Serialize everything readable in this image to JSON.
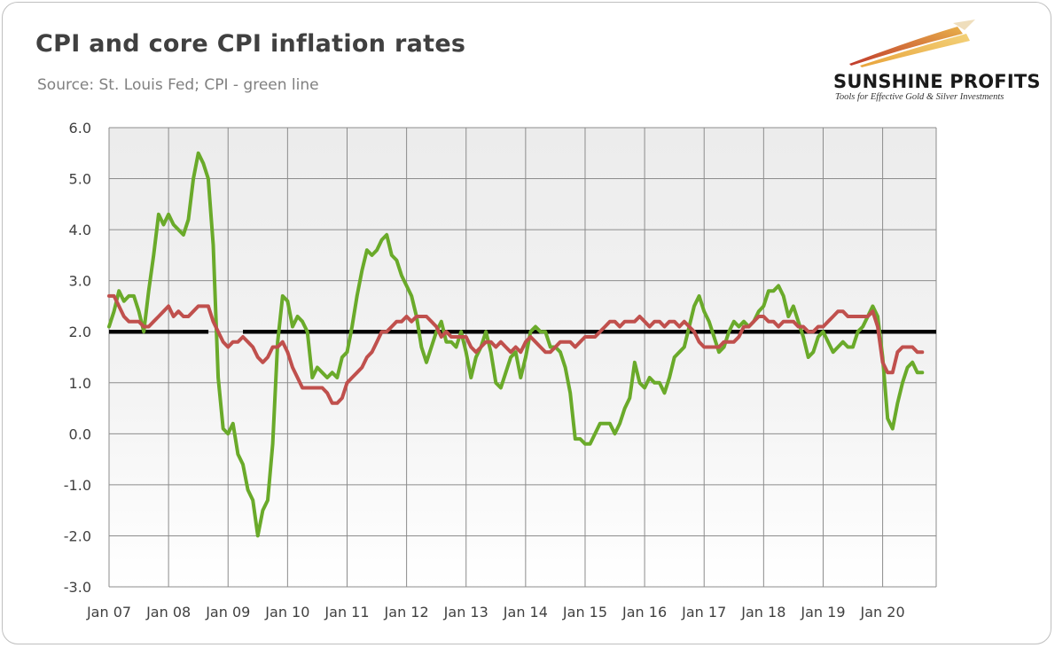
{
  "header": {
    "title": "CPI and core CPI inflation rates",
    "subtitle": "Source: St. Louis Fed; CPI - green line"
  },
  "logo": {
    "name": "SUNSHINE PROFITS",
    "tagline": "Tools for Effective Gold & Silver Investments"
  },
  "colors": {
    "cpi": "#6aaa2a",
    "core": "#c0504d",
    "target": "#000000",
    "plot_bg_top": "#ececec",
    "plot_bg_bottom": "#ffffff",
    "grid": "#8c8c8c"
  },
  "chart_data": {
    "type": "line",
    "title": "CPI and core CPI inflation rates",
    "subtitle": "Source: St. Louis Fed; CPI - green line",
    "xlabel": "",
    "ylabel": "",
    "ylim": [
      -3.0,
      6.0
    ],
    "grid": true,
    "x_tick_labels": [
      "Jan 07",
      "Jan 08",
      "Jan 09",
      "Jan 10",
      "Jan 11",
      "Jan 12",
      "Jan 13",
      "Jan 14",
      "Jan 15",
      "Jan 16",
      "Jan 17",
      "Jan 18",
      "Jan 19",
      "Jan 20"
    ],
    "y_tick_labels": [
      "6.0",
      "5.0",
      "4.0",
      "3.0",
      "2.0",
      "1.0",
      "0.0",
      "-1.0",
      "-2.0",
      "-3.0"
    ],
    "y_ticks": [
      6,
      5,
      4,
      3,
      2,
      1,
      0,
      -1,
      -2,
      -3
    ],
    "x_start_year": 2007,
    "x_end_year": 2020.9,
    "series": [
      {
        "name": "CPI",
        "color": "#6aaa2a",
        "start_year": 2007.0,
        "step_months": 1,
        "values": [
          2.1,
          2.4,
          2.8,
          2.6,
          2.7,
          2.7,
          2.4,
          2.0,
          2.8,
          3.5,
          4.3,
          4.1,
          4.3,
          4.1,
          4.0,
          3.9,
          4.2,
          5.0,
          5.5,
          5.3,
          5.0,
          3.7,
          1.1,
          0.1,
          0.0,
          0.2,
          -0.4,
          -0.6,
          -1.1,
          -1.3,
          -2.0,
          -1.5,
          -1.3,
          -0.2,
          1.8,
          2.7,
          2.6,
          2.1,
          2.3,
          2.2,
          2.0,
          1.1,
          1.3,
          1.2,
          1.1,
          1.2,
          1.1,
          1.5,
          1.6,
          2.1,
          2.7,
          3.2,
          3.6,
          3.5,
          3.6,
          3.8,
          3.9,
          3.5,
          3.4,
          3.1,
          2.9,
          2.7,
          2.3,
          1.7,
          1.4,
          1.7,
          2.0,
          2.2,
          1.8,
          1.8,
          1.7,
          2.0,
          1.6,
          1.1,
          1.5,
          1.7,
          2.0,
          1.6,
          1.0,
          0.9,
          1.2,
          1.5,
          1.6,
          1.1,
          1.5,
          2.0,
          2.1,
          2.0,
          2.0,
          1.7,
          1.7,
          1.6,
          1.3,
          0.8,
          -0.1,
          -0.1,
          -0.2,
          -0.2,
          0.0,
          0.2,
          0.2,
          0.2,
          0.0,
          0.2,
          0.5,
          0.7,
          1.4,
          1.0,
          0.9,
          1.1,
          1.0,
          1.0,
          0.8,
          1.1,
          1.5,
          1.6,
          1.7,
          2.1,
          2.5,
          2.7,
          2.4,
          2.2,
          1.9,
          1.6,
          1.7,
          2.0,
          2.2,
          2.1,
          2.2,
          2.1,
          2.2,
          2.4,
          2.5,
          2.8,
          2.8,
          2.9,
          2.7,
          2.3,
          2.5,
          2.2,
          1.9,
          1.5,
          1.6,
          1.9,
          2.0,
          1.8,
          1.6,
          1.7,
          1.8,
          1.7,
          1.7,
          2.0,
          2.1,
          2.3,
          2.5,
          2.3,
          1.5,
          0.3,
          0.1,
          0.6,
          1.0,
          1.3,
          1.4,
          1.2,
          1.2
        ]
      },
      {
        "name": "Core CPI",
        "color": "#c0504d",
        "start_year": 2007.0,
        "step_months": 1,
        "values": [
          2.7,
          2.7,
          2.5,
          2.3,
          2.2,
          2.2,
          2.2,
          2.1,
          2.1,
          2.2,
          2.3,
          2.4,
          2.5,
          2.3,
          2.4,
          2.3,
          2.3,
          2.4,
          2.5,
          2.5,
          2.5,
          2.2,
          2.0,
          1.8,
          1.7,
          1.8,
          1.8,
          1.9,
          1.8,
          1.7,
          1.5,
          1.4,
          1.5,
          1.7,
          1.7,
          1.8,
          1.6,
          1.3,
          1.1,
          0.9,
          0.9,
          0.9,
          0.9,
          0.9,
          0.8,
          0.6,
          0.6,
          0.7,
          1.0,
          1.1,
          1.2,
          1.3,
          1.5,
          1.6,
          1.8,
          2.0,
          2.0,
          2.1,
          2.2,
          2.2,
          2.3,
          2.2,
          2.3,
          2.3,
          2.3,
          2.2,
          2.1,
          1.9,
          2.0,
          1.9,
          1.9,
          1.9,
          1.9,
          1.7,
          1.6,
          1.7,
          1.8,
          1.8,
          1.7,
          1.8,
          1.7,
          1.6,
          1.7,
          1.6,
          1.8,
          1.9,
          1.8,
          1.7,
          1.6,
          1.6,
          1.7,
          1.8,
          1.8,
          1.8,
          1.7,
          1.8,
          1.9,
          1.9,
          1.9,
          2.0,
          2.1,
          2.2,
          2.2,
          2.1,
          2.2,
          2.2,
          2.2,
          2.3,
          2.2,
          2.1,
          2.2,
          2.2,
          2.1,
          2.2,
          2.2,
          2.1,
          2.2,
          2.1,
          2.0,
          1.8,
          1.7,
          1.7,
          1.7,
          1.7,
          1.8,
          1.8,
          1.8,
          1.9,
          2.1,
          2.1,
          2.2,
          2.3,
          2.3,
          2.2,
          2.2,
          2.1,
          2.2,
          2.2,
          2.2,
          2.1,
          2.1,
          2.0,
          2.0,
          2.1,
          2.1,
          2.2,
          2.3,
          2.4,
          2.4,
          2.3,
          2.3,
          2.3,
          2.3,
          2.3,
          2.4,
          2.1,
          1.4,
          1.2,
          1.2,
          1.6,
          1.7,
          1.7,
          1.7,
          1.6,
          1.6
        ]
      },
      {
        "name": "2% target",
        "color": "#000000",
        "segments": [
          {
            "from_year": 2007.0,
            "to_year": 2008.67,
            "value": 2.0
          },
          {
            "from_year": 2009.25,
            "to_year": 2020.9,
            "value": 2.0
          }
        ]
      }
    ]
  }
}
